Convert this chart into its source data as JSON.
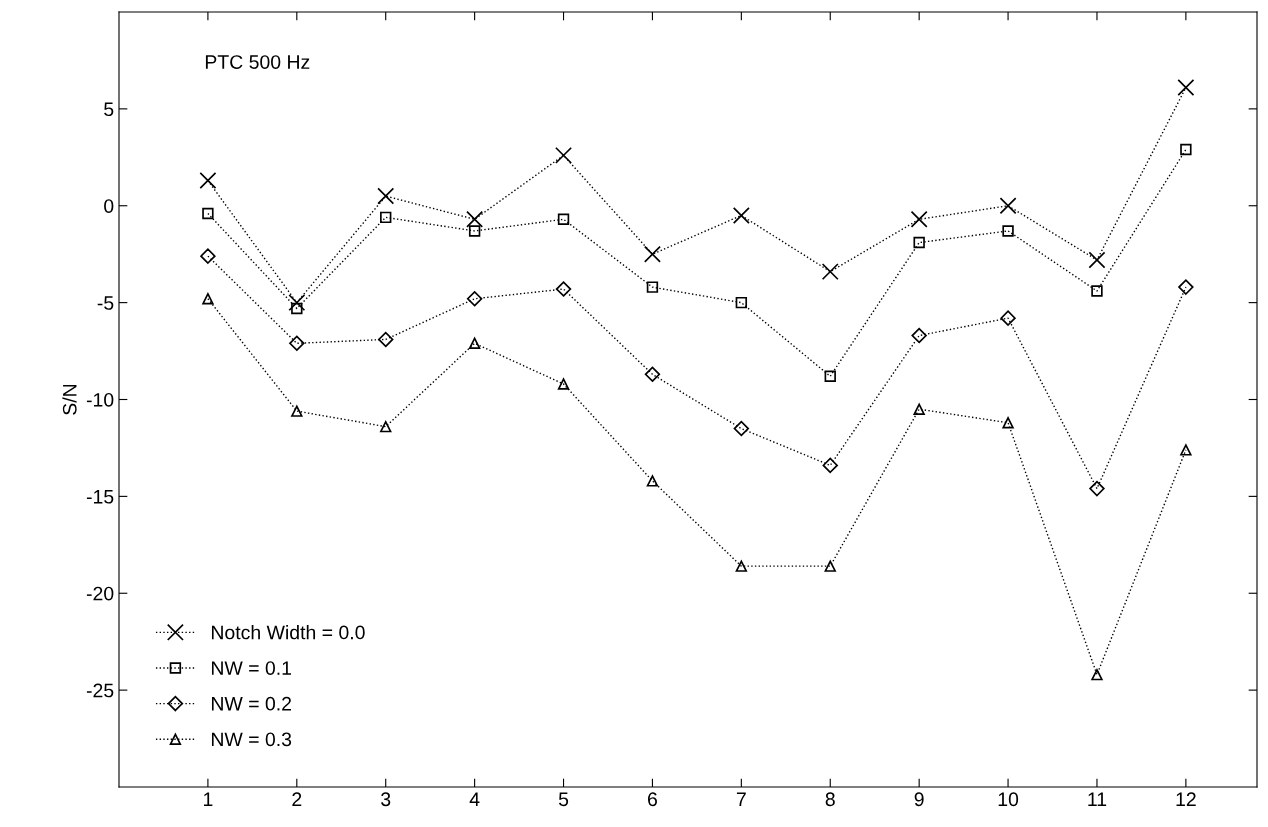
{
  "chart_data": {
    "type": "line",
    "ylabel": "S/N",
    "annotations": [
      "PTC 500 Hz"
    ],
    "x": [
      1,
      2,
      3,
      4,
      5,
      6,
      7,
      8,
      9,
      10,
      11,
      12
    ],
    "xlim": [
      0,
      12.8
    ],
    "xticks": [
      1,
      2,
      3,
      4,
      5,
      6,
      7,
      8,
      9,
      10,
      11,
      12
    ],
    "ylim": [
      -30,
      10
    ],
    "yticks": [
      -25,
      -20,
      -15,
      -10,
      -5,
      0,
      5
    ],
    "grid": false,
    "legend": "bottom left",
    "line_style": "dotted",
    "series": [
      {
        "name": "Notch Width = 0.0",
        "color": "#000000",
        "marker": "cross",
        "values": [
          1.3,
          -5.0,
          0.5,
          -0.7,
          2.6,
          -2.5,
          -0.5,
          -3.4,
          -0.7,
          0.0,
          -2.8,
          6.1
        ]
      },
      {
        "name": "NW = 0.1",
        "color": "#000000",
        "marker": "square",
        "values": [
          -0.4,
          -5.3,
          -0.6,
          -1.3,
          -0.7,
          -4.2,
          -5.0,
          -8.8,
          -1.9,
          -1.3,
          -4.4,
          2.9
        ]
      },
      {
        "name": "NW = 0.2",
        "color": "#000000",
        "marker": "diamond",
        "values": [
          -2.6,
          -7.1,
          -6.9,
          -4.8,
          -4.3,
          -8.7,
          -11.5,
          -13.4,
          -6.7,
          -5.8,
          -14.6,
          -4.2
        ]
      },
      {
        "name": "NW = 0.3",
        "color": "#000000",
        "marker": "triangle",
        "values": [
          -4.8,
          -10.6,
          -11.4,
          -7.1,
          -9.2,
          -14.2,
          -18.6,
          -18.6,
          -10.5,
          -11.2,
          -24.2,
          -12.6
        ]
      }
    ]
  }
}
